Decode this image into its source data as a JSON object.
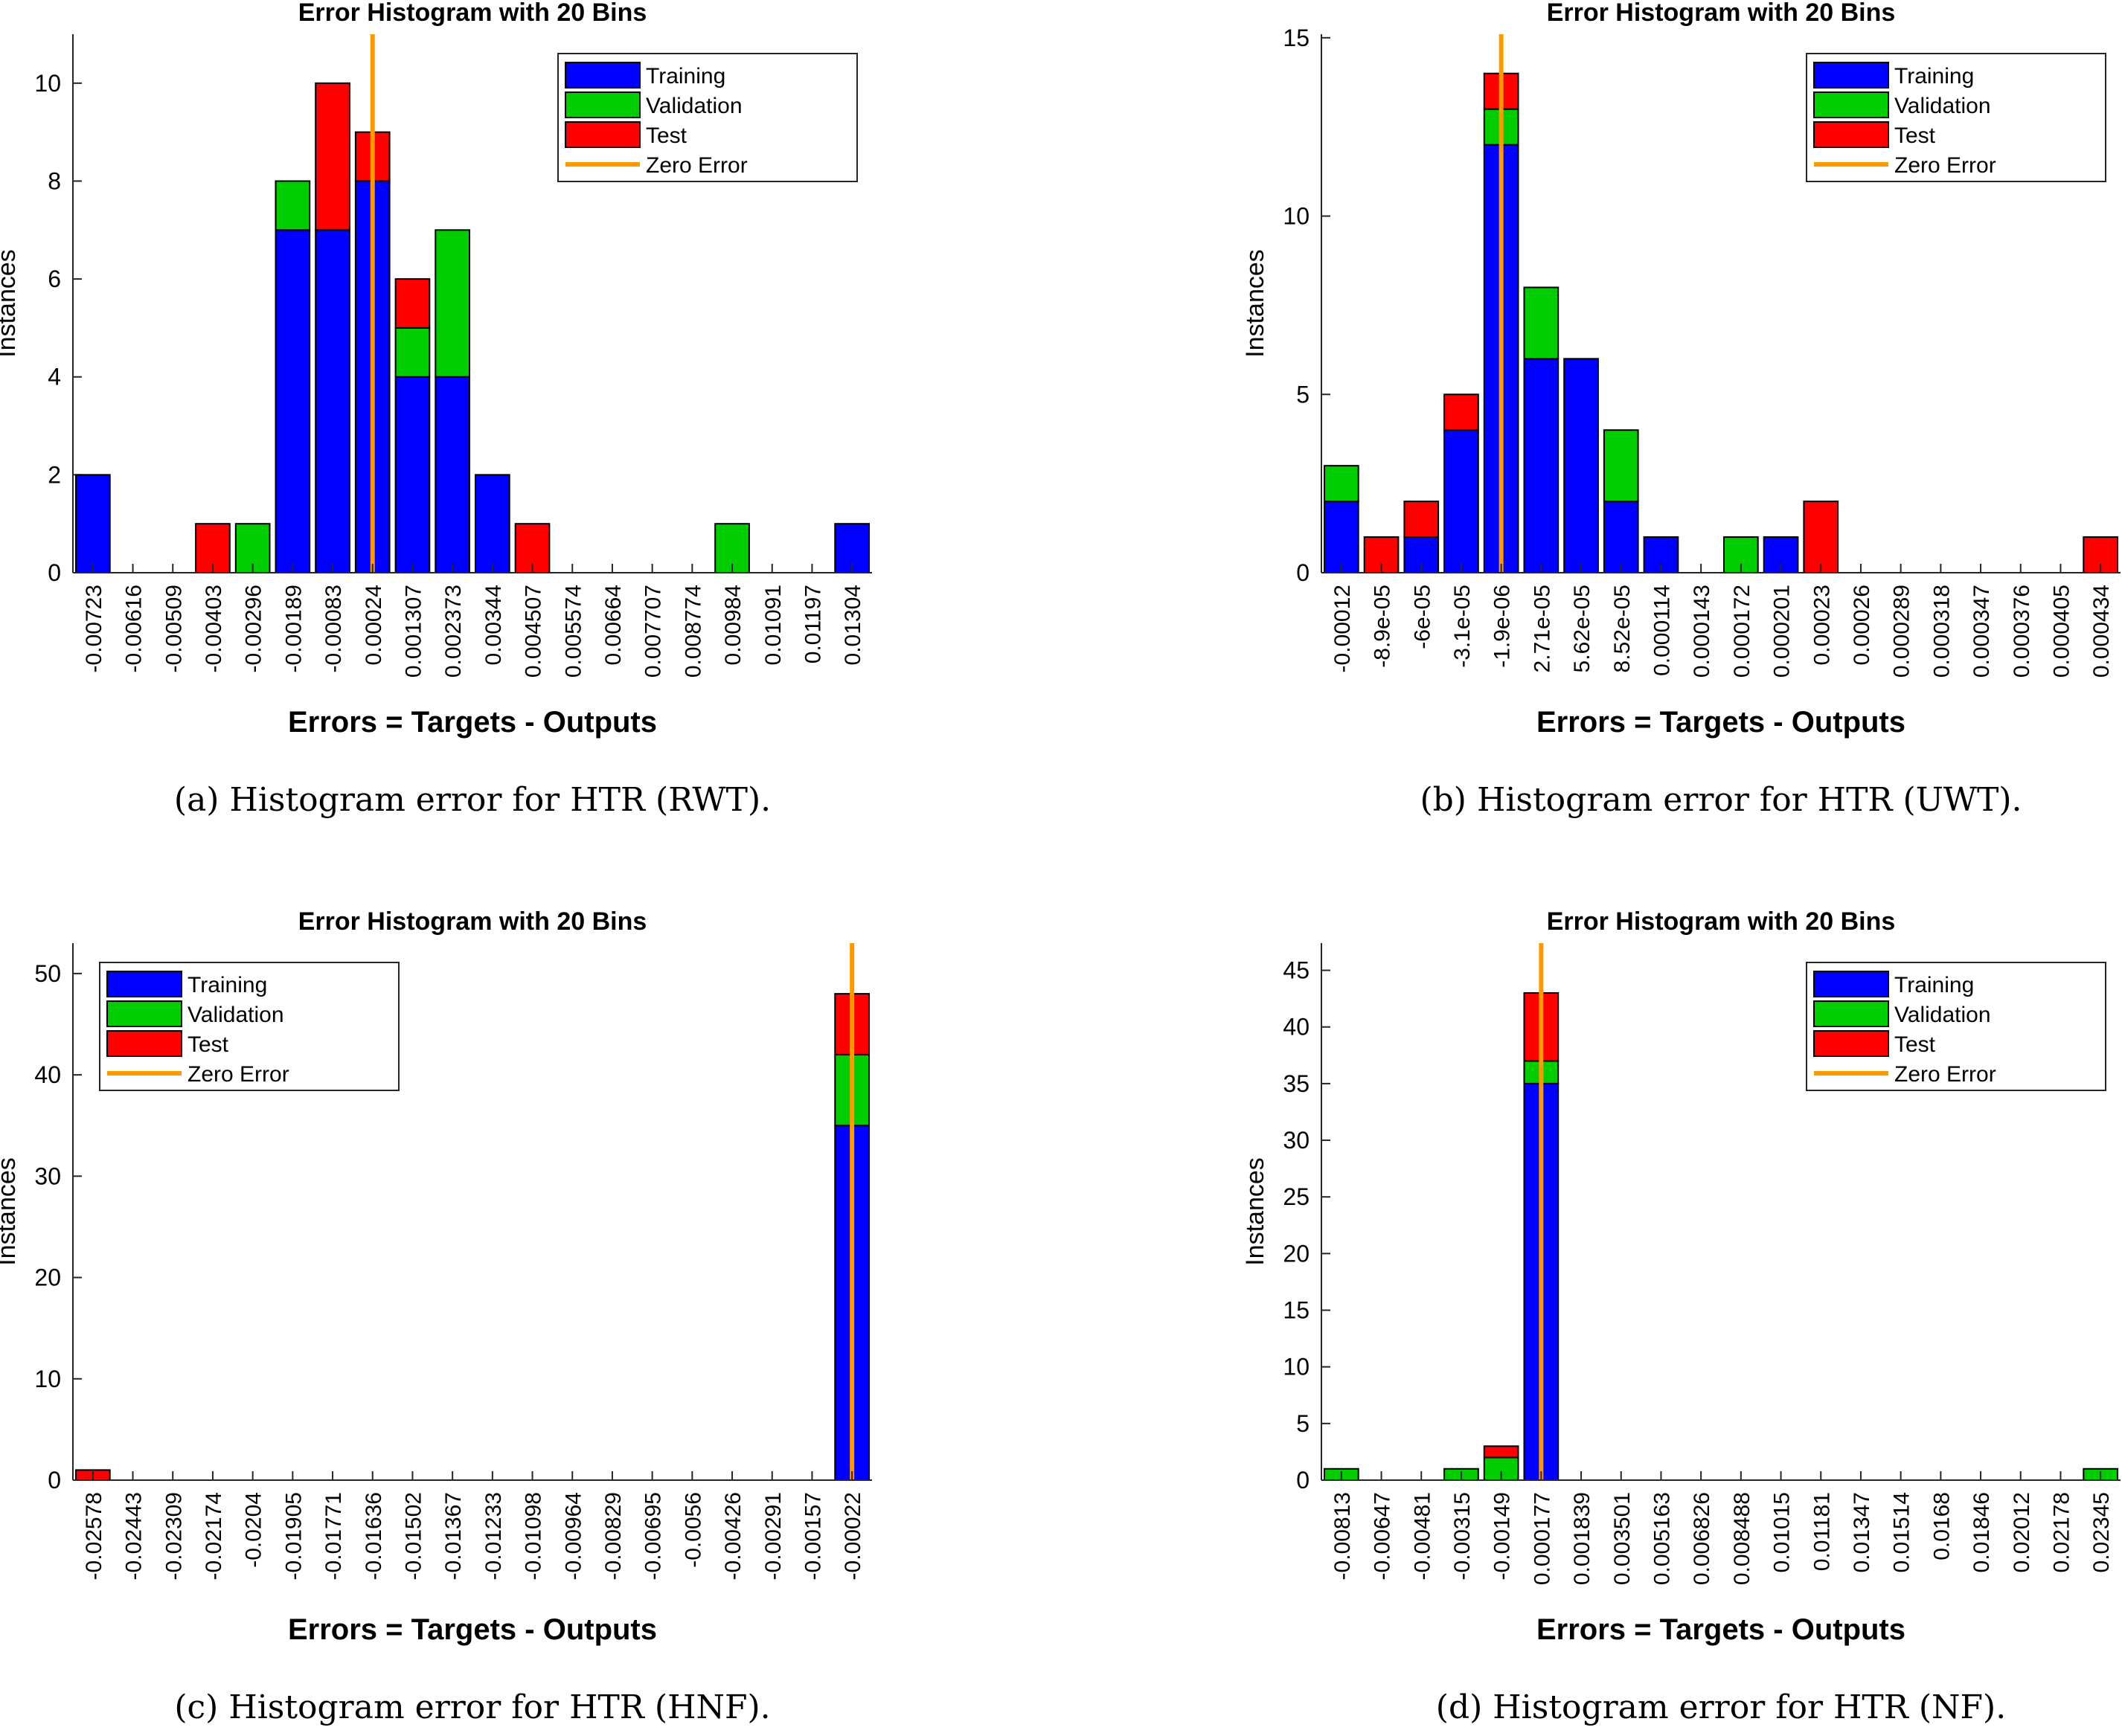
{
  "colors": {
    "training": "#0000ff",
    "validation": "#00cc00",
    "test": "#ff0000",
    "zero_error": "#ff9900"
  },
  "legend_labels": [
    "Training",
    "Validation",
    "Test",
    "Zero Error"
  ],
  "chart_data": [
    {
      "type": "bar",
      "stacked": true,
      "title": "Error Histogram with 20 Bins",
      "xlabel": "Errors = Targets - Outputs",
      "ylabel": "Instances",
      "caption": "(a) Histogram error for HTR (RWT).",
      "ylim": [
        0,
        11
      ],
      "yticks": [
        "0",
        "2",
        "4",
        "6",
        "8",
        "10"
      ],
      "ytick_values": [
        0,
        2,
        4,
        6,
        8,
        10
      ],
      "legend_position": "top-right",
      "zero_error_bin": 7,
      "categories": [
        "-0.00723",
        "-0.00616",
        "-0.00509",
        "-0.00403",
        "-0.00296",
        "-0.00189",
        "-0.00083",
        "0.00024",
        "0.001307",
        "0.002373",
        "0.00344",
        "0.004507",
        "0.005574",
        "0.00664",
        "0.007707",
        "0.008774",
        "0.00984",
        "0.01091",
        "0.01197",
        "0.01304"
      ],
      "series": [
        {
          "name": "Training",
          "values": [
            2,
            0,
            0,
            0,
            0,
            7,
            7,
            8,
            4,
            4,
            2,
            0,
            0,
            0,
            0,
            0,
            0,
            0,
            0,
            1
          ]
        },
        {
          "name": "Validation",
          "values": [
            0,
            0,
            0,
            0,
            1,
            1,
            0,
            0,
            1,
            3,
            0,
            0,
            0,
            0,
            0,
            0,
            1,
            0,
            0,
            0
          ]
        },
        {
          "name": "Test",
          "values": [
            0,
            0,
            0,
            1,
            0,
            0,
            3,
            1,
            1,
            0,
            0,
            1,
            0,
            0,
            0,
            0,
            0,
            0,
            0,
            0
          ]
        }
      ]
    },
    {
      "type": "bar",
      "stacked": true,
      "title": "Error Histogram with 20 Bins",
      "xlabel": "Errors = Targets - Outputs",
      "ylabel": "Instances",
      "caption": "(b) Histogram error for HTR (UWT).",
      "ylim": [
        0,
        15.1
      ],
      "yticks": [
        "0",
        "5",
        "10",
        "15"
      ],
      "ytick_values": [
        0,
        5,
        10,
        15
      ],
      "legend_position": "top-right",
      "zero_error_bin": 4,
      "categories": [
        "-0.00012",
        "-8.9e-05",
        "-6e-05",
        "-3.1e-05",
        "-1.9e-06",
        "2.71e-05",
        "5.62e-05",
        "8.52e-05",
        "0.000114",
        "0.000143",
        "0.000172",
        "0.000201",
        "0.00023",
        "0.00026",
        "0.000289",
        "0.000318",
        "0.000347",
        "0.000376",
        "0.000405",
        "0.000434"
      ],
      "series": [
        {
          "name": "Training",
          "values": [
            2,
            0,
            1,
            4,
            12,
            6,
            6,
            2,
            1,
            0,
            0,
            1,
            0,
            0,
            0,
            0,
            0,
            0,
            0,
            0
          ]
        },
        {
          "name": "Validation",
          "values": [
            1,
            0,
            0,
            0,
            1,
            2,
            0,
            2,
            0,
            0,
            1,
            0,
            0,
            0,
            0,
            0,
            0,
            0,
            0,
            0
          ]
        },
        {
          "name": "Test",
          "values": [
            0,
            1,
            1,
            1,
            1,
            0,
            0,
            0,
            0,
            0,
            0,
            0,
            2,
            0,
            0,
            0,
            0,
            0,
            0,
            1
          ]
        }
      ]
    },
    {
      "type": "bar",
      "stacked": true,
      "title": "Error Histogram with 20 Bins",
      "xlabel": "Errors = Targets - Outputs",
      "ylabel": "Instances",
      "caption": "(c) Histogram error for HTR (HNF).",
      "ylim": [
        0,
        53
      ],
      "yticks": [
        "0",
        "10",
        "20",
        "30",
        "40",
        "50"
      ],
      "ytick_values": [
        0,
        10,
        20,
        30,
        40,
        50
      ],
      "legend_position": "top-left",
      "zero_error_bin": 19,
      "categories": [
        "-0.02578",
        "-0.02443",
        "-0.02309",
        "-0.02174",
        "-0.0204",
        "-0.01905",
        "-0.01771",
        "-0.01636",
        "-0.01502",
        "-0.01367",
        "-0.01233",
        "-0.01098",
        "-0.00964",
        "-0.00829",
        "-0.00695",
        "-0.0056",
        "-0.00426",
        "-0.00291",
        "-0.00157",
        "-0.00022"
      ],
      "series": [
        {
          "name": "Training",
          "values": [
            0,
            0,
            0,
            0,
            0,
            0,
            0,
            0,
            0,
            0,
            0,
            0,
            0,
            0,
            0,
            0,
            0,
            0,
            0,
            35
          ]
        },
        {
          "name": "Validation",
          "values": [
            0,
            0,
            0,
            0,
            0,
            0,
            0,
            0,
            0,
            0,
            0,
            0,
            0,
            0,
            0,
            0,
            0,
            0,
            0,
            7
          ]
        },
        {
          "name": "Test",
          "values": [
            1,
            0,
            0,
            0,
            0,
            0,
            0,
            0,
            0,
            0,
            0,
            0,
            0,
            0,
            0,
            0,
            0,
            0,
            0,
            6
          ]
        }
      ]
    },
    {
      "type": "bar",
      "stacked": true,
      "title": "Error Histogram with 20 Bins",
      "xlabel": "Errors = Targets - Outputs",
      "ylabel": "Instances",
      "caption": "(d) Histogram error for HTR (NF).",
      "ylim": [
        0,
        47.4
      ],
      "yticks": [
        "0",
        "5",
        "10",
        "15",
        "20",
        "25",
        "30",
        "35",
        "40",
        "45"
      ],
      "ytick_values": [
        0,
        5,
        10,
        15,
        20,
        25,
        30,
        35,
        40,
        45
      ],
      "legend_position": "top-right",
      "zero_error_bin": 5,
      "categories": [
        "-0.00813",
        "-0.00647",
        "-0.00481",
        "-0.00315",
        "-0.00149",
        "0.000177",
        "0.001839",
        "0.003501",
        "0.005163",
        "0.006826",
        "0.008488",
        "0.01015",
        "0.01181",
        "0.01347",
        "0.01514",
        "0.0168",
        "0.01846",
        "0.02012",
        "0.02178",
        "0.02345"
      ],
      "series": [
        {
          "name": "Training",
          "values": [
            0,
            0,
            0,
            0,
            0,
            35,
            0,
            0,
            0,
            0,
            0,
            0,
            0,
            0,
            0,
            0,
            0,
            0,
            0,
            0
          ]
        },
        {
          "name": "Validation",
          "values": [
            1,
            0,
            0,
            1,
            2,
            2,
            0,
            0,
            0,
            0,
            0,
            0,
            0,
            0,
            0,
            0,
            0,
            0,
            0,
            1
          ]
        },
        {
          "name": "Test",
          "values": [
            0,
            0,
            0,
            0,
            1,
            6,
            0,
            0,
            0,
            0,
            0,
            0,
            0,
            0,
            0,
            0,
            0,
            0,
            0,
            0
          ]
        }
      ]
    }
  ]
}
